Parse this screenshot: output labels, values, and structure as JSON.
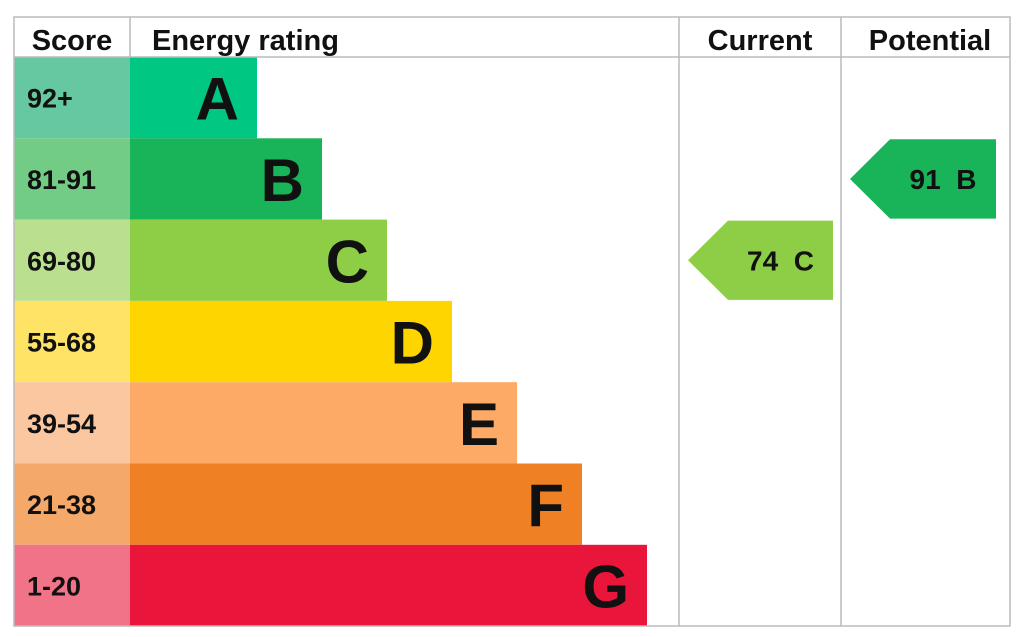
{
  "chart_data": {
    "type": "bar",
    "headers": {
      "score": "Score",
      "rating": "Energy rating",
      "current": "Current",
      "potential": "Potential"
    },
    "bands": [
      {
        "score": "92+",
        "letter": "A",
        "color": "#00c781",
        "score_color": "#66c8a0"
      },
      {
        "score": "81-91",
        "letter": "B",
        "color": "#19b459",
        "score_color": "#72cc86"
      },
      {
        "score": "69-80",
        "letter": "C",
        "color": "#8dce46",
        "score_color": "#badf8f"
      },
      {
        "score": "55-68",
        "letter": "D",
        "color": "#ffd500",
        "score_color": "#ffe366"
      },
      {
        "score": "39-54",
        "letter": "E",
        "color": "#fcaa65",
        "score_color": "#fbc7a0"
      },
      {
        "score": "21-38",
        "letter": "F",
        "color": "#ef8023",
        "score_color": "#f4a96a"
      },
      {
        "score": "1-20",
        "letter": "G",
        "color": "#e9153b",
        "score_color": "#f17387"
      }
    ],
    "current": {
      "value": 74,
      "letter": "C",
      "label": "74  C"
    },
    "potential": {
      "value": 91,
      "letter": "B",
      "label": "91  B"
    }
  }
}
